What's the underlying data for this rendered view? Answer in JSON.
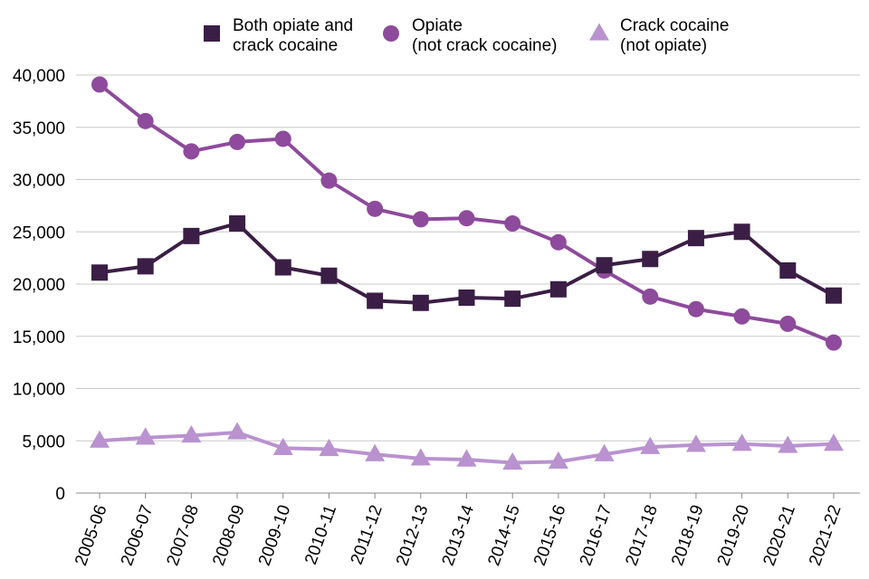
{
  "chart_data": {
    "type": "line",
    "categories": [
      "2005-06",
      "2006-07",
      "2007-08",
      "2008-09",
      "2009-10",
      "2010-11",
      "2011-12",
      "2012-13",
      "2013-14",
      "2014-15",
      "2015-16",
      "2016-17",
      "2017-18",
      "2018-19",
      "2019-20",
      "2020-21",
      "2021-22"
    ],
    "series": [
      {
        "name_lines": [
          "Both opiate and",
          "crack cocaine"
        ],
        "marker": "square",
        "color": "#3b1e45",
        "values": [
          21100,
          21700,
          24600,
          25800,
          21600,
          20800,
          18400,
          18200,
          18700,
          18600,
          19500,
          21800,
          22400,
          24400,
          25000,
          21300,
          18900
        ]
      },
      {
        "name_lines": [
          "Opiate",
          "(not crack cocaine)"
        ],
        "marker": "circle",
        "color": "#8e4a9c",
        "values": [
          39100,
          35600,
          32700,
          33600,
          33900,
          29900,
          27200,
          26200,
          26300,
          25800,
          24000,
          21300,
          18800,
          17600,
          16900,
          16200,
          14400
        ]
      },
      {
        "name_lines": [
          "Crack cocaine",
          "(not opiate)"
        ],
        "marker": "triangle",
        "color": "#b992cf",
        "values": [
          5000,
          5300,
          5500,
          5800,
          4300,
          4200,
          3700,
          3300,
          3200,
          2900,
          3000,
          3700,
          4400,
          4600,
          4700,
          4500,
          4700
        ]
      }
    ],
    "y_ticks": [
      "0",
      "5,000",
      "10,000",
      "15,000",
      "20,000",
      "25,000",
      "30,000",
      "35,000",
      "40,000"
    ],
    "ylim": [
      0,
      40000
    ],
    "grid": true,
    "legend_position": "top"
  }
}
